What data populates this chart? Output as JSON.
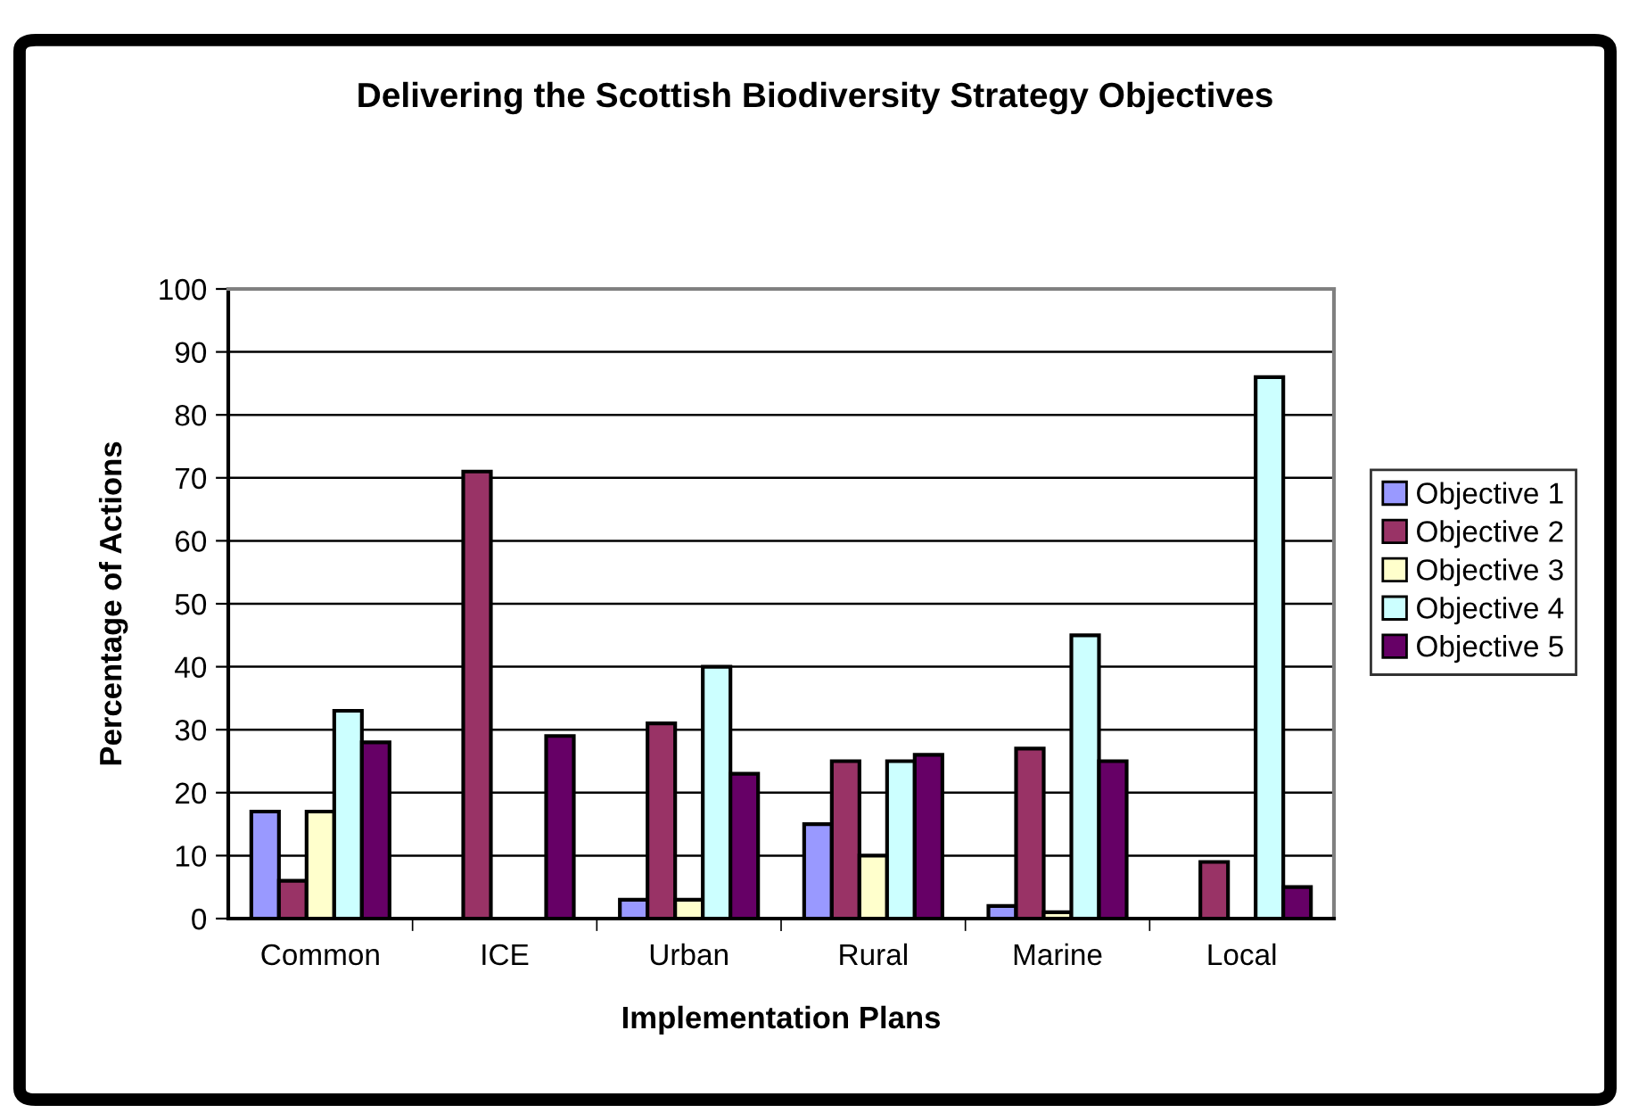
{
  "chart_data": {
    "type": "bar",
    "title": "Delivering the Scottish Biodiversity Strategy Objectives",
    "xlabel": "Implementation Plans",
    "ylabel": "Percentage of Actions",
    "categories": [
      "Common",
      "ICE",
      "Urban",
      "Rural",
      "Marine",
      "Local"
    ],
    "series": [
      {
        "name": "Objective 1",
        "color": "#9999ff",
        "values": [
          17,
          null,
          3,
          15,
          2,
          null
        ]
      },
      {
        "name": "Objective 2",
        "color": "#993366",
        "values": [
          6,
          71,
          31,
          25,
          27,
          9
        ]
      },
      {
        "name": "Objective 3",
        "color": "#ffffcc",
        "values": [
          17,
          null,
          3,
          10,
          1,
          null
        ]
      },
      {
        "name": "Objective 4",
        "color": "#ccffff",
        "values": [
          33,
          null,
          40,
          25,
          45,
          86
        ]
      },
      {
        "name": "Objective 5",
        "color": "#660066",
        "values": [
          28,
          29,
          23,
          26,
          25,
          5
        ]
      }
    ],
    "ylim": [
      0,
      100
    ],
    "yticks": [
      0,
      10,
      20,
      30,
      40,
      50,
      60,
      70,
      80,
      90,
      100
    ],
    "grid": "y",
    "legend": "right"
  }
}
